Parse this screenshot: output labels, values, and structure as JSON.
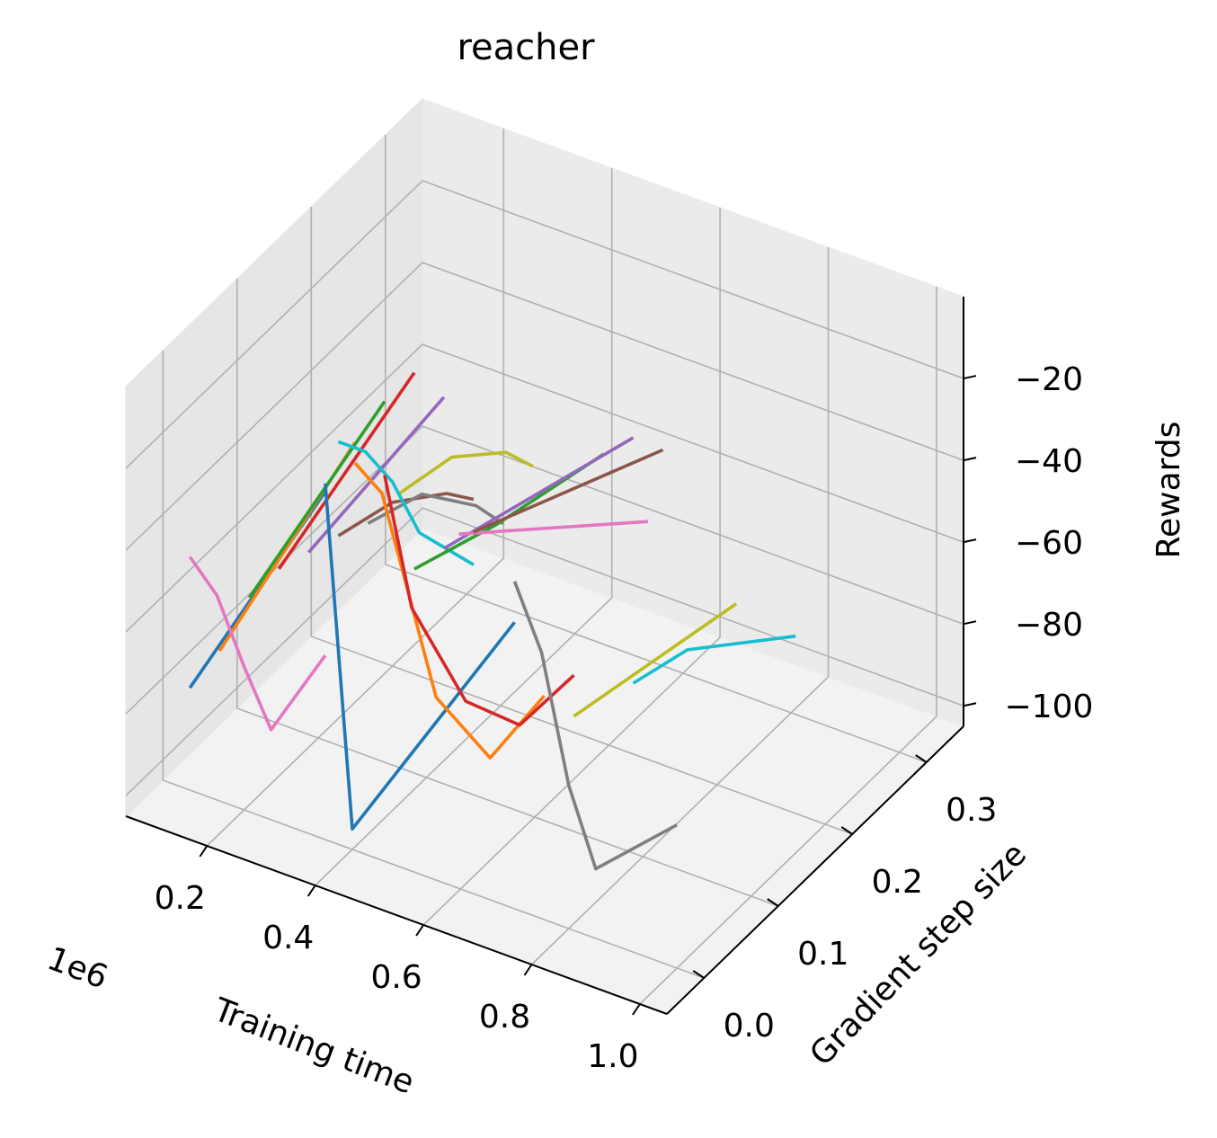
{
  "chart_data": {
    "type": "line",
    "projection": "3d",
    "title": "reacher",
    "xlabel": "Training time",
    "ylabel": "Gradient step size",
    "zlabel": "Rewards",
    "x_offset_text": "1e6",
    "xlim": [
      0.05,
      1.05
    ],
    "ylim": [
      -0.05,
      0.35
    ],
    "zlim": [
      -105,
      0
    ],
    "x_ticks": [
      0.2,
      0.4,
      0.6,
      0.8,
      1.0
    ],
    "x_tick_labels": [
      "0.2",
      "0.4",
      "0.6",
      "0.8",
      "1.0"
    ],
    "y_ticks": [
      0.0,
      0.1,
      0.2,
      0.3
    ],
    "y_tick_labels": [
      "0.0",
      "0.1",
      "0.2",
      "0.3"
    ],
    "z_ticks": [
      -100,
      -80,
      -60,
      -40,
      -20
    ],
    "z_tick_labels": [
      "−100",
      "−80",
      "−60",
      "−40",
      "−20"
    ],
    "grid": true,
    "pane_color": "#f2f2f2",
    "grid_color": "#b0b0b0",
    "series": [
      {
        "color": "#1f77b4",
        "x": [
          0.1,
          0.35
        ],
        "y": [
          0.0,
          0.0
        ],
        "z": [
          -80,
          -20
        ]
      },
      {
        "color": "#ff7f0e",
        "x": [
          0.1,
          0.35
        ],
        "y": [
          0.04,
          0.04
        ],
        "z": [
          -78,
          -15
        ]
      },
      {
        "color": "#2ca02c",
        "x": [
          0.1,
          0.35
        ],
        "y": [
          0.08,
          0.08
        ],
        "z": [
          -72,
          -12
        ]
      },
      {
        "color": "#d62728",
        "x": [
          0.1,
          0.35
        ],
        "y": [
          0.12,
          0.12
        ],
        "z": [
          -72,
          -12
        ]
      },
      {
        "color": "#9467bd",
        "x": [
          0.1,
          0.35
        ],
        "y": [
          0.16,
          0.16
        ],
        "z": [
          -75,
          -25
        ]
      },
      {
        "color": "#8c564b",
        "x": [
          0.1,
          0.2,
          0.3,
          0.35
        ],
        "y": [
          0.2,
          0.2,
          0.2,
          0.2
        ],
        "z": [
          -78,
          -65,
          -58,
          -57
        ]
      },
      {
        "color": "#7f7f7f",
        "x": [
          0.1,
          0.2,
          0.3,
          0.35
        ],
        "y": [
          0.24,
          0.24,
          0.24,
          0.24
        ],
        "z": [
          -82,
          -70,
          -68,
          -70
        ]
      },
      {
        "color": "#bcbd22",
        "x": [
          0.1,
          0.2,
          0.3,
          0.35
        ],
        "y": [
          0.28,
          0.28,
          0.28,
          0.28
        ],
        "z": [
          -82,
          -68,
          -62,
          -63
        ]
      },
      {
        "color": "#e377c2",
        "x": [
          0.1,
          0.15,
          0.2,
          0.25,
          0.35
        ],
        "y": [
          0.0,
          0.0,
          0.0,
          0.0,
          0.0
        ],
        "z": [
          -48,
          -55,
          -70,
          -83,
          -60
        ]
      },
      {
        "color": "#17becf",
        "x": [
          0.1,
          0.15,
          0.2,
          0.25,
          0.35
        ],
        "y": [
          0.2,
          0.2,
          0.2,
          0.2,
          0.2
        ],
        "z": [
          -55,
          -55,
          -60,
          -70,
          -73
        ]
      },
      {
        "color": "#1f77b4",
        "x": [
          0.35,
          0.4,
          0.7
        ],
        "y": [
          0.0,
          0.0,
          0.0
        ],
        "z": [
          -18,
          -100,
          -35
        ]
      },
      {
        "color": "#ff7f0e",
        "x": [
          0.35,
          0.4,
          0.5,
          0.6,
          0.7
        ],
        "y": [
          0.04,
          0.04,
          0.04,
          0.04,
          0.04
        ],
        "z": [
          -20,
          -25,
          -70,
          -80,
          -60
        ]
      },
      {
        "color": "#d62728",
        "x": [
          0.35,
          0.4,
          0.5,
          0.6,
          0.7
        ],
        "y": [
          0.08,
          0.08,
          0.08,
          0.08,
          0.08
        ],
        "z": [
          -30,
          -60,
          -78,
          -79,
          -62
        ]
      },
      {
        "color": "#2ca02c",
        "x": [
          0.35,
          0.5,
          0.7
        ],
        "y": [
          0.12,
          0.12,
          0.12
        ],
        "z": [
          -60,
          -42,
          -15
        ]
      },
      {
        "color": "#9467bd",
        "x": [
          0.35,
          0.7
        ],
        "y": [
          0.16,
          0.16
        ],
        "z": [
          -62,
          -18
        ]
      },
      {
        "color": "#e377c2",
        "x": [
          0.35,
          0.7
        ],
        "y": [
          0.18,
          0.18
        ],
        "z": [
          -62,
          -42
        ]
      },
      {
        "color": "#8c564b",
        "x": [
          0.35,
          0.7
        ],
        "y": [
          0.2,
          0.2
        ],
        "z": [
          -65,
          -28
        ]
      },
      {
        "color": "#7f7f7f",
        "x": [
          0.7,
          0.75,
          0.8,
          0.85,
          1.0
        ],
        "y": [
          0.0,
          0.0,
          0.0,
          0.0,
          0.0
        ],
        "z": [
          -25,
          -40,
          -70,
          -88,
          -70
        ]
      },
      {
        "color": "#bcbd22",
        "x": [
          0.7,
          1.0
        ],
        "y": [
          0.08,
          0.08
        ],
        "z": [
          -72,
          -30
        ]
      },
      {
        "color": "#17becf",
        "x": [
          0.7,
          0.8,
          1.0
        ],
        "y": [
          0.16,
          0.16,
          0.16
        ],
        "z": [
          -78,
          -65,
          -52
        ]
      }
    ]
  }
}
